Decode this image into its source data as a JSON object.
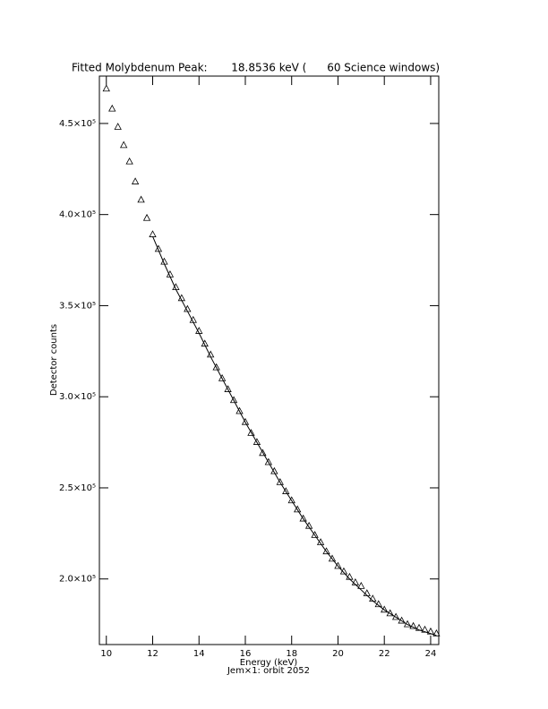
{
  "chart_data": {
    "type": "scatter",
    "title": "Fitted Molybdenum Peak:       18.8536 keV (      60 Science windows)",
    "x_label": "Energy (keV)",
    "subtitle": "Jem×1: orbit 2052",
    "y_label": "Detector counts",
    "color": "#000000",
    "xlim": [
      9.7,
      24.35
    ],
    "ylim": [
      164000,
      476000
    ],
    "xticks": [
      10,
      12,
      14,
      16,
      18,
      20,
      22,
      24
    ],
    "yticks": [
      {
        "value": 200000,
        "label": "2.0×10⁵"
      },
      {
        "value": 250000,
        "label": "2.5×10⁵"
      },
      {
        "value": 300000,
        "label": "3.0×10⁵"
      },
      {
        "value": 350000,
        "label": "3.5×10⁵"
      },
      {
        "value": 400000,
        "label": "4.0×10⁵"
      },
      {
        "value": 450000,
        "label": "4.5×10⁵"
      }
    ],
    "series": [
      {
        "marker": "triangle",
        "x": [
          10,
          10.25,
          10.5,
          10.75,
          11,
          11.25,
          11.5,
          11.75,
          12,
          12.25,
          12.5,
          12.75,
          13,
          13.25,
          13.5,
          13.75,
          14,
          14.25,
          14.5,
          14.75,
          15,
          15.25,
          15.5,
          15.75,
          16,
          16.25,
          16.5,
          16.75,
          17,
          17.25,
          17.5,
          17.75,
          18,
          18.25,
          18.5,
          18.75,
          19,
          19.25,
          19.5,
          19.75,
          20,
          20.25,
          20.5,
          20.75,
          21,
          21.25,
          21.5,
          21.75,
          22,
          22.25,
          22.5,
          22.75,
          23,
          23.25,
          23.5,
          23.75,
          24,
          24.25
        ],
        "values": [
          469000,
          458000,
          448000,
          438000,
          429000,
          418000,
          408000,
          398000,
          389000,
          381000,
          374000,
          367000,
          360000,
          354000,
          348000,
          342000,
          336000,
          329000,
          323000,
          316000,
          310000,
          304000,
          298000,
          292000,
          286000,
          280000,
          275000,
          269000,
          264000,
          259000,
          253000,
          248000,
          243000,
          238000,
          233000,
          229000,
          224000,
          220000,
          215000,
          211000,
          207000,
          204000,
          201000,
          198000,
          196000,
          192000,
          189000,
          186000,
          183000,
          181000,
          179000,
          177000,
          175000,
          174000,
          173000,
          172000,
          171000,
          170000
        ]
      },
      {
        "marker": "line",
        "x": [
          12,
          12.5,
          13,
          13.5,
          14,
          14.5,
          15,
          15.5,
          16,
          16.5,
          17,
          17.5,
          18,
          18.5,
          19,
          19.5,
          20,
          20.5,
          21,
          21.5,
          22,
          22.5,
          23,
          23.5,
          24,
          24.25
        ],
        "values": [
          388000,
          373000,
          359000,
          347000,
          335000,
          322000,
          310000,
          298000,
          286000,
          275000,
          264000,
          253000,
          243000,
          233000,
          224000,
          215000,
          207000,
          200000,
          194000,
          188000,
          183000,
          179000,
          175000,
          172000,
          170000,
          169000
        ]
      }
    ]
  }
}
